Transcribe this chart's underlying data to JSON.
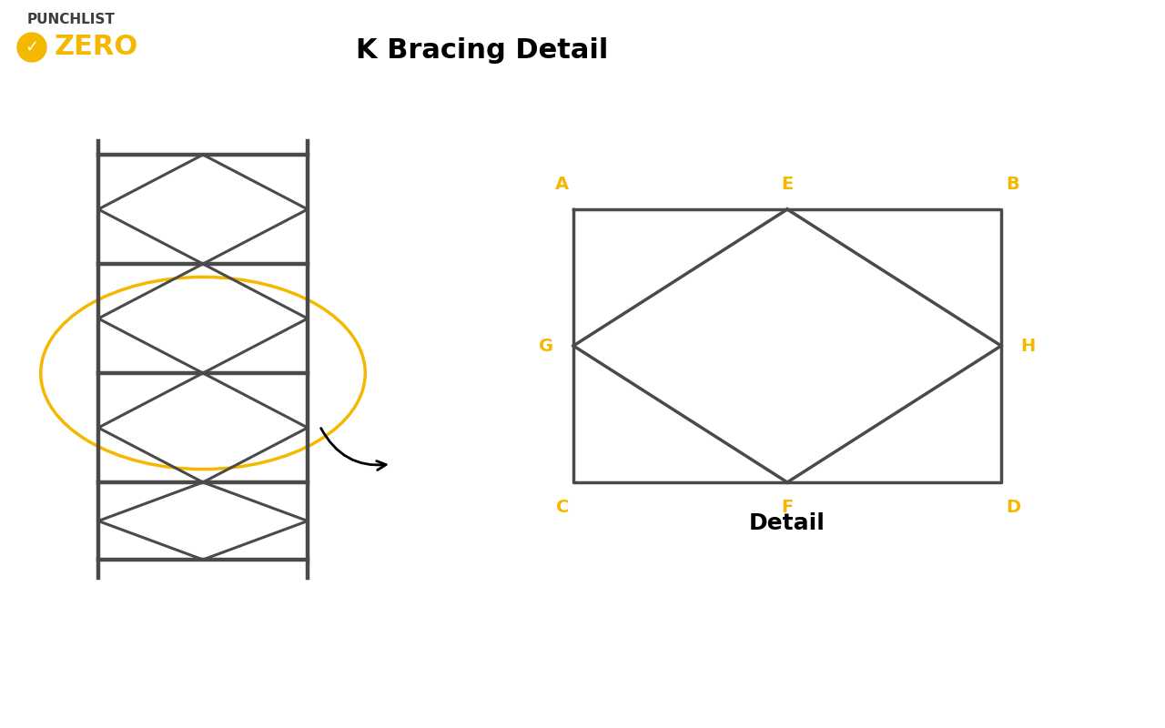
{
  "title": "K Bracing Detail",
  "title_fontsize": 22,
  "title_fontweight": "bold",
  "bg_color": "#ffffff",
  "line_color": "#4a4a4a",
  "gold_color": "#F5B800",
  "line_width": 2.2,
  "detail_lw": 2.5,
  "detail_label": "Detail",
  "detail_label_fontsize": 18,
  "detail_label_fontweight": "bold",
  "logo_punchlist": "PUNCHLIST",
  "logo_zero": "ZERO"
}
